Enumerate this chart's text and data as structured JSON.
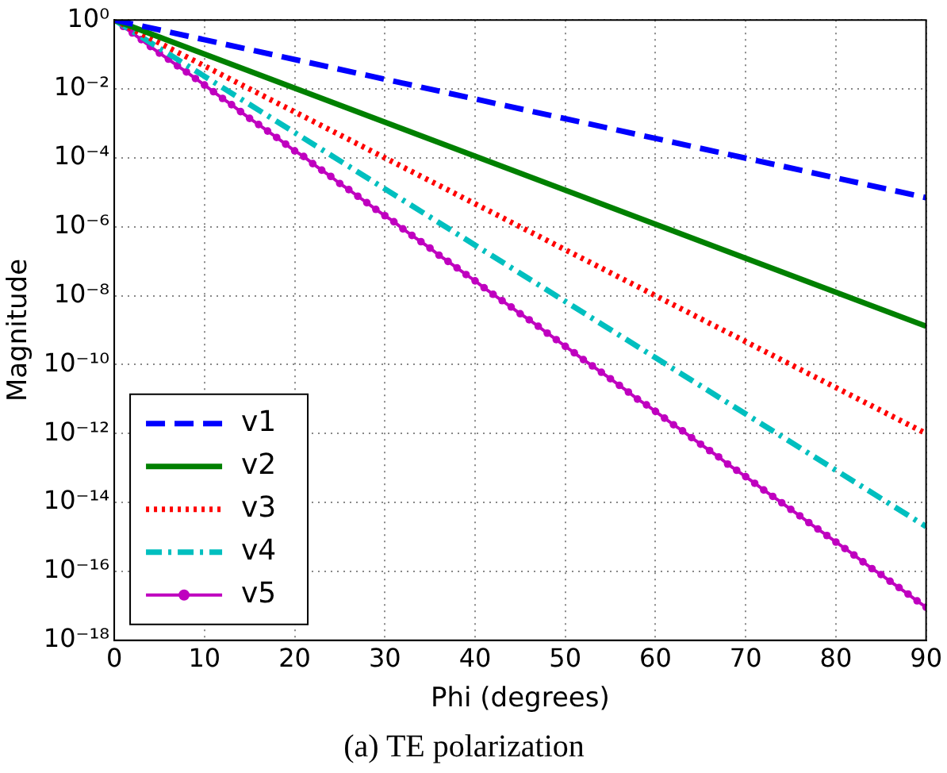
{
  "chart_data": {
    "type": "line",
    "title": "(a) TE polarization",
    "xlabel": "Phi (degrees)",
    "ylabel": "Magnitude",
    "log": "y",
    "grid": true,
    "legend": "bottom left",
    "xlim": [
      0,
      90
    ],
    "xticks": [
      0,
      10,
      20,
      30,
      40,
      50,
      60,
      70,
      80,
      90
    ],
    "ylim": [
      1e-18,
      1
    ],
    "yticks": [
      {
        "value": 1,
        "label": "10⁰"
      },
      {
        "value": 0.01,
        "label": "10⁻²"
      },
      {
        "value": 0.0001,
        "label": "10⁻⁴"
      },
      {
        "value": 1e-06,
        "label": "10⁻⁶"
      },
      {
        "value": 1e-08,
        "label": "10⁻⁸"
      },
      {
        "value": 1e-10,
        "label": "10⁻¹⁰"
      },
      {
        "value": 1e-12,
        "label": "10⁻¹²"
      },
      {
        "value": 1e-14,
        "label": "10⁻¹⁴"
      },
      {
        "value": 1e-16,
        "label": "10⁻¹⁶"
      },
      {
        "value": 1e-18,
        "label": "10⁻¹⁸"
      }
    ],
    "series": [
      {
        "name": "v1",
        "color": "#0000ff",
        "line_style": "dashed",
        "marker": "none",
        "x": [
          0,
          90
        ],
        "values": [
          1,
          7e-06
        ]
      },
      {
        "name": "v2",
        "color": "#008000",
        "line_style": "solid",
        "marker": "none",
        "x": [
          0,
          90
        ],
        "values": [
          1,
          1.3e-09
        ]
      },
      {
        "name": "v3",
        "color": "#ff0000",
        "line_style": "dotted",
        "marker": "none",
        "x": [
          0,
          90
        ],
        "values": [
          1,
          1e-12
        ]
      },
      {
        "name": "v4",
        "color": "#00bfbf",
        "line_style": "dashdot",
        "marker": "none",
        "x": [
          0,
          90
        ],
        "values": [
          1,
          2e-15
        ]
      },
      {
        "name": "v5",
        "color": "#bf00bf",
        "line_style": "solid",
        "marker": "circle",
        "x": [
          0,
          1,
          2,
          3,
          4,
          5,
          6,
          7,
          8,
          9,
          10,
          11,
          12,
          13,
          14,
          15,
          16,
          17,
          18,
          19,
          20,
          21,
          22,
          23,
          24,
          25,
          26,
          27,
          28,
          29,
          30,
          31,
          32,
          33,
          34,
          35,
          36,
          37,
          38,
          39,
          40,
          41,
          42,
          43,
          44,
          45,
          46,
          47,
          48,
          49,
          50,
          51,
          52,
          53,
          54,
          55,
          56,
          57,
          58,
          59,
          60,
          61,
          62,
          63,
          64,
          65,
          66,
          67,
          68,
          69,
          70,
          71,
          72,
          73,
          74,
          75,
          76,
          77,
          78,
          79,
          80,
          81,
          82,
          83,
          84,
          85,
          86,
          87,
          88,
          89,
          90
        ],
        "values": [
          1,
          0.65,
          0.42,
          0.27,
          0.17,
          0.11,
          0.073,
          0.047,
          0.031,
          0.02,
          0.013,
          0.0083,
          0.0053,
          0.0035,
          0.0022,
          0.0014,
          0.00093,
          0.0006,
          0.00039,
          0.00025,
          0.00016,
          0.00011,
          6.8e-05,
          4.4e-05,
          2.9e-05,
          1.8e-05,
          1.2e-05,
          7.7e-06,
          5e-06,
          3.2e-06,
          2.1e-06,
          1.4e-06,
          8.7e-07,
          5.6e-07,
          3.7e-07,
          2.4e-07,
          1.5e-07,
          9.9e-08,
          6.4e-08,
          4.1e-08,
          2.7e-08,
          1.7e-08,
          1.1e-08,
          7.2e-09,
          4.7e-09,
          3e-09,
          2e-09,
          1.3e-09,
          8.2e-10,
          5.3e-10,
          3.4e-10,
          2.2e-10,
          1.4e-10,
          9.2e-11,
          6e-11,
          3.9e-11,
          2.5e-11,
          1.6e-11,
          1e-11,
          6.8e-12,
          4.4e-12,
          2.8e-12,
          1.8e-12,
          1.2e-12,
          7.6e-13,
          4.9e-13,
          3.2e-13,
          2.1e-13,
          1.3e-13,
          8.6e-14,
          5.6e-14,
          3.6e-14,
          2.3e-14,
          1.5e-14,
          9.8e-15,
          6.3e-15,
          4.1e-15,
          2.6e-15,
          1.7e-15,
          1.1e-15,
          7.1e-16,
          4.6e-16,
          3e-16,
          1.9e-16,
          1.2e-16,
          8.1e-17,
          5.2e-17,
          3.4e-17,
          2.2e-17,
          1.4e-17,
          9.1e-18
        ]
      }
    ]
  }
}
